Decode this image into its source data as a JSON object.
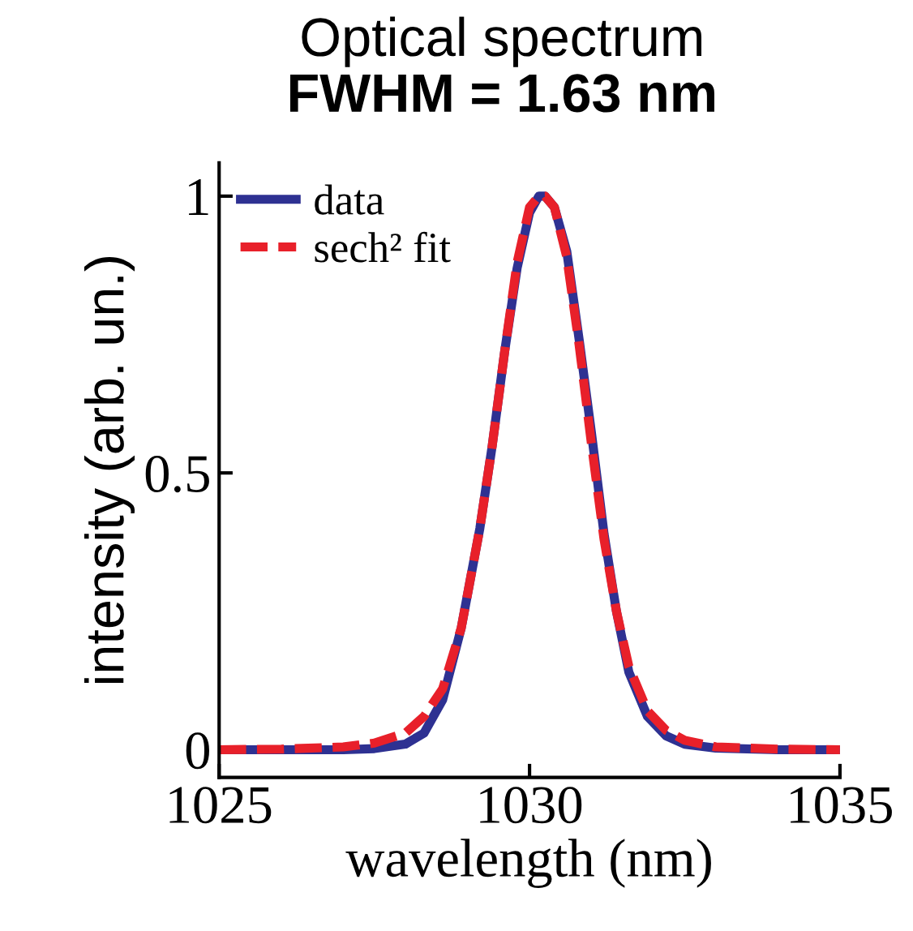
{
  "chart_data": {
    "type": "line",
    "title": "Optical spectrum",
    "subtitle": "FWHM = 1.63 nm",
    "xlabel": "wavelength (nm)",
    "ylabel": "intensity (arb. un.)",
    "xlim": [
      1025,
      1035
    ],
    "ylim": [
      -0.05,
      1.06
    ],
    "xticks": [
      1025,
      1030,
      1035
    ],
    "yticks": [
      0,
      0.5,
      1
    ],
    "grid": false,
    "legend": "top left",
    "line_style": "solid",
    "series": [
      {
        "name": "data",
        "color": "#2e3192",
        "x": [
          1025,
          1026,
          1027,
          1027.5,
          1028,
          1028.3,
          1028.6,
          1028.9,
          1029.2,
          1029.4,
          1029.6,
          1029.8,
          1030,
          1030.15,
          1030.25,
          1030.4,
          1030.6,
          1030.8,
          1031,
          1031.2,
          1031.4,
          1031.6,
          1031.9,
          1032.2,
          1032.5,
          1033,
          1034,
          1035
        ],
        "values": [
          0,
          0,
          0,
          0.002,
          0.01,
          0.03,
          0.09,
          0.22,
          0.4,
          0.55,
          0.72,
          0.87,
          0.97,
          1.0,
          1.0,
          0.98,
          0.9,
          0.74,
          0.57,
          0.39,
          0.25,
          0.14,
          0.06,
          0.025,
          0.01,
          0.003,
          0,
          0
        ]
      },
      {
        "name": "sech² fit",
        "color": "#e8202a",
        "line_style": "dashed",
        "x": [
          1025,
          1026,
          1027,
          1027.5,
          1028,
          1028.3,
          1028.6,
          1028.9,
          1029.2,
          1029.4,
          1029.6,
          1029.8,
          1030,
          1030.15,
          1030.25,
          1030.4,
          1030.6,
          1030.8,
          1031,
          1031.2,
          1031.4,
          1031.6,
          1031.9,
          1032.2,
          1032.5,
          1033,
          1034,
          1035
        ],
        "values": [
          0,
          0.001,
          0.005,
          0.012,
          0.03,
          0.06,
          0.11,
          0.22,
          0.4,
          0.55,
          0.72,
          0.88,
          0.98,
          1.0,
          1.0,
          0.98,
          0.89,
          0.73,
          0.55,
          0.38,
          0.25,
          0.15,
          0.07,
          0.035,
          0.017,
          0.005,
          0.001,
          0
        ]
      }
    ]
  }
}
